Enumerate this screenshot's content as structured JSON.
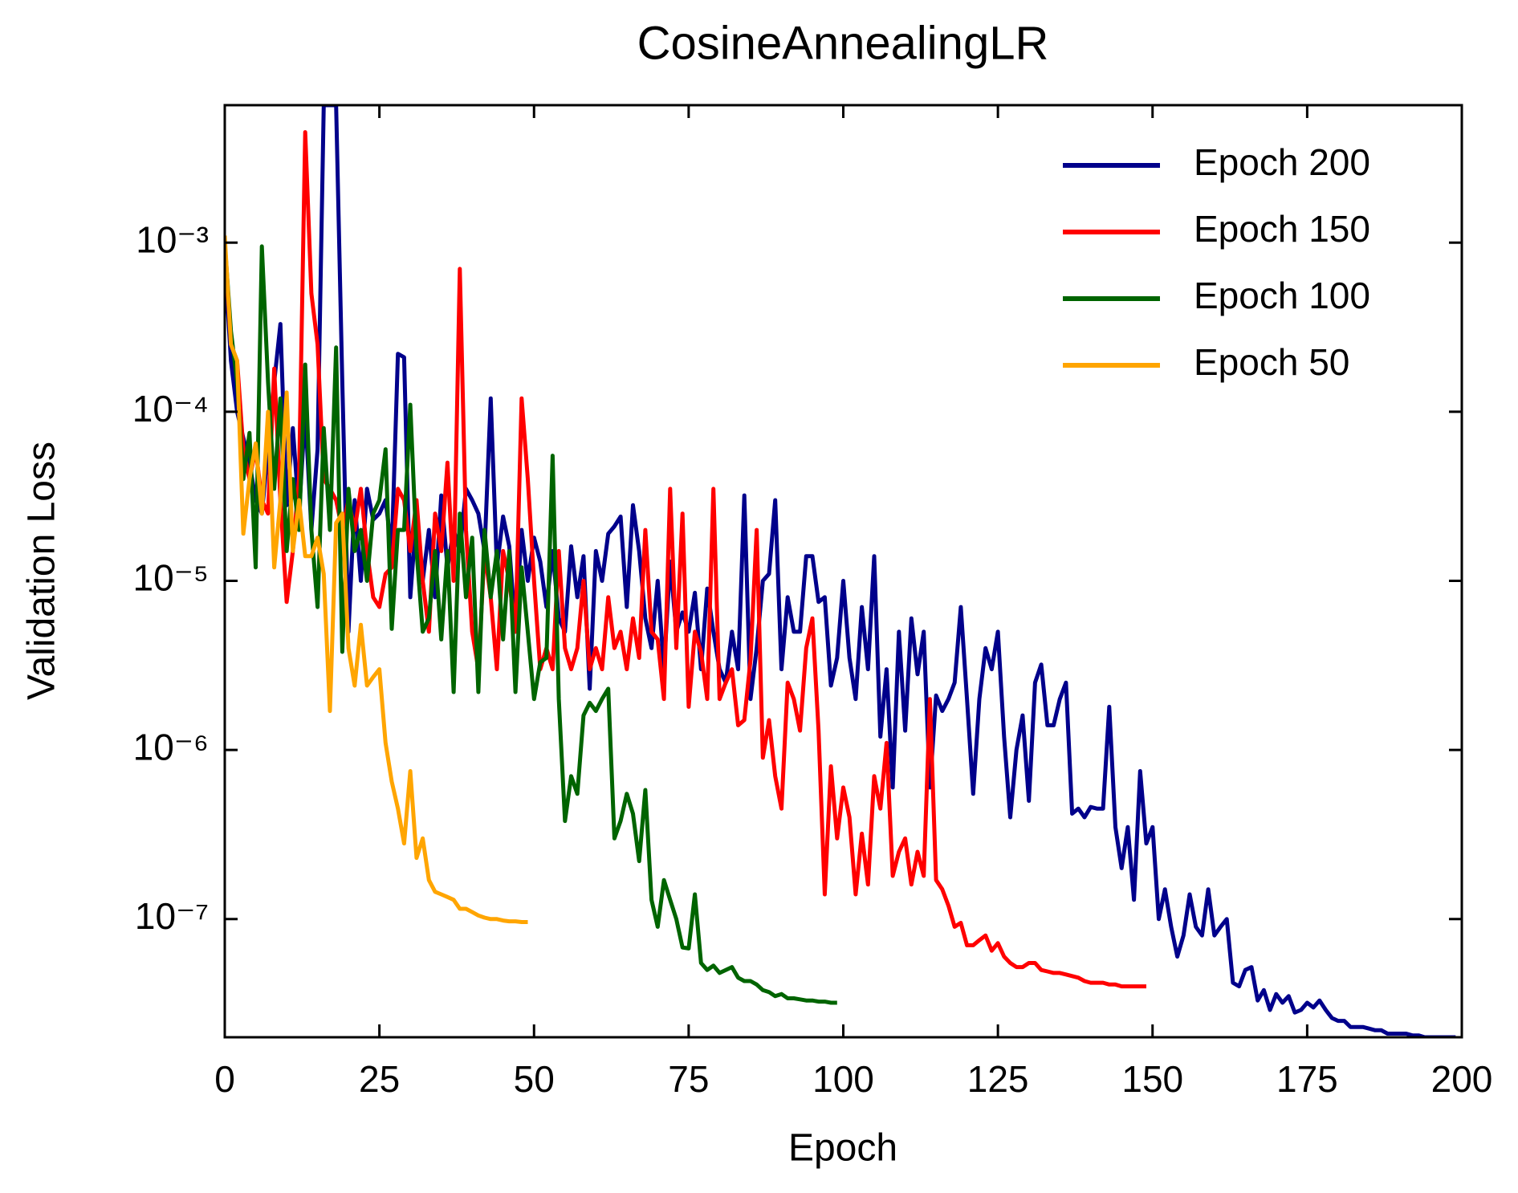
{
  "chart_data": {
    "type": "line",
    "title": "CosineAnnealingLR",
    "xlabel": "Epoch",
    "ylabel": "Validation Loss",
    "yscale": "log",
    "legend": "upper right",
    "xlim": [
      0,
      200
    ],
    "xticks": [
      0,
      25,
      50,
      75,
      100,
      125,
      150,
      175,
      200
    ],
    "ylim": [
      2e-08,
      0.0065
    ],
    "yticks": [
      {
        "value": 1e-07,
        "label": "10⁻⁷"
      },
      {
        "value": 1e-06,
        "label": "10⁻⁶"
      },
      {
        "value": 1e-05,
        "label": "10⁻⁵"
      },
      {
        "value": 0.0001,
        "label": "10⁻⁴"
      },
      {
        "value": 0.001,
        "label": "10⁻³"
      }
    ],
    "x": [
      0,
      1,
      2,
      3,
      4,
      5,
      6,
      7,
      8,
      9,
      10,
      11,
      12,
      13,
      14,
      15,
      16,
      17,
      18,
      19,
      20,
      21,
      22,
      23,
      24,
      25,
      26,
      27,
      28,
      29,
      30,
      31,
      32,
      33,
      34,
      35,
      36,
      37,
      38,
      39,
      40,
      41,
      42,
      43,
      44,
      45,
      46,
      47,
      48,
      49,
      50,
      51,
      52,
      53,
      54,
      55,
      56,
      57,
      58,
      59,
      60,
      61,
      62,
      63,
      64,
      65,
      66,
      67,
      68,
      69,
      70,
      71,
      72,
      73,
      74,
      75,
      76,
      77,
      78,
      79,
      80,
      81,
      82,
      83,
      84,
      85,
      86,
      87,
      88,
      89,
      90,
      91,
      92,
      93,
      94,
      95,
      96,
      97,
      98,
      99,
      100,
      101,
      102,
      103,
      104,
      105,
      106,
      107,
      108,
      109,
      110,
      111,
      112,
      113,
      114,
      115,
      116,
      117,
      118,
      119,
      120,
      121,
      122,
      123,
      124,
      125,
      126,
      127,
      128,
      129,
      130,
      131,
      132,
      133,
      134,
      135,
      136,
      137,
      138,
      139,
      140,
      141,
      142,
      143,
      144,
      145,
      146,
      147,
      148,
      149,
      150,
      151,
      152,
      153,
      154,
      155,
      156,
      157,
      158,
      159,
      160,
      161,
      162,
      163,
      164,
      165,
      166,
      167,
      168,
      169,
      170,
      171,
      172,
      173,
      174,
      175,
      176,
      177,
      178,
      179,
      180,
      181,
      182,
      183,
      184,
      185,
      186,
      187,
      188,
      189,
      190,
      191,
      192,
      193,
      194,
      195,
      196,
      197,
      198,
      199
    ],
    "series": [
      {
        "name": "Epoch 200",
        "color": "#00008b",
        "values": [
          0.0008,
          0.0002,
          0.0001,
          7e-05,
          5e-05,
          3e-05,
          2.5e-05,
          6e-05,
          0.00015,
          0.00033,
          2.8e-05,
          8e-05,
          2.5e-05,
          0.0001,
          2e-05,
          6e-05,
          0.0065,
          0.0065,
          0.0065,
          0.00015,
          5e-06,
          3e-05,
          1e-05,
          3.5e-05,
          2.3e-05,
          2.5e-05,
          3e-05,
          1.5e-05,
          0.00022,
          0.00021,
          8e-06,
          2.5e-05,
          1e-05,
          2e-05,
          8e-06,
          3.2e-05,
          1.2e-05,
          2e-05,
          1.5e-05,
          3.5e-05,
          3e-05,
          2.5e-05,
          1.5e-05,
          0.00012,
          1.2e-05,
          2.4e-05,
          1.6e-05,
          5e-06,
          2e-05,
          1e-05,
          1.8e-05,
          1.3e-05,
          7e-06,
          1.5e-05,
          6e-06,
          5e-06,
          1.6e-05,
          8e-06,
          1.4e-05,
          2.3e-06,
          1.5e-05,
          1e-05,
          1.9e-05,
          2.1e-05,
          2.4e-05,
          7e-06,
          2.8e-05,
          1.5e-05,
          6e-06,
          4e-06,
          1e-05,
          3e-06,
          1.3e-05,
          5e-06,
          6.5e-06,
          5e-06,
          8.5e-06,
          3e-06,
          9e-06,
          5e-06,
          3e-06,
          2.5e-06,
          5e-06,
          3e-06,
          3.2e-05,
          2e-06,
          4e-06,
          1e-05,
          1.1e-05,
          3e-05,
          3e-06,
          8e-06,
          5e-06,
          5e-06,
          1.4e-05,
          1.4e-05,
          7.5e-06,
          8e-06,
          2.4e-06,
          3.5e-06,
          1e-05,
          3.5e-06,
          2e-06,
          7e-06,
          3e-06,
          1.4e-05,
          1.2e-06,
          3e-06,
          6e-07,
          5e-06,
          1.3e-06,
          6e-06,
          2.8e-06,
          5e-06,
          6e-07,
          2.1e-06,
          1.7e-06,
          2e-06,
          2.5e-06,
          7e-06,
          2e-06,
          5.5e-07,
          2e-06,
          4e-06,
          3e-06,
          5e-06,
          1.2e-06,
          4e-07,
          1e-06,
          1.6e-06,
          5e-07,
          2.5e-06,
          3.2e-06,
          1.4e-06,
          1.4e-06,
          2e-06,
          2.5e-06,
          4.2e-07,
          4.5e-07,
          4e-07,
          4.6e-07,
          4.5e-07,
          4.5e-07,
          1.8e-06,
          3.5e-07,
          2e-07,
          3.5e-07,
          1.3e-07,
          7.5e-07,
          2.8e-07,
          3.5e-07,
          1e-07,
          1.5e-07,
          9e-08,
          6e-08,
          8e-08,
          1.4e-07,
          9e-08,
          8e-08,
          1.5e-07,
          8e-08,
          9e-08,
          1e-07,
          4.2e-08,
          4e-08,
          5e-08,
          5.2e-08,
          3.3e-08,
          3.8e-08,
          2.9e-08,
          3.6e-08,
          3.2e-08,
          3.5e-08,
          2.8e-08,
          2.9e-08,
          3.2e-08,
          3e-08,
          3.3e-08,
          2.9e-08,
          2.6e-08,
          2.5e-08,
          2.5e-08,
          2.3e-08,
          2.3e-08,
          2.3e-08,
          2.25e-08,
          2.2e-08,
          2.2e-08,
          2.1e-08,
          2.1e-08,
          2.1e-08,
          2.1e-08,
          2.05e-08,
          2.05e-08,
          2e-08,
          2e-08,
          2e-08,
          2e-08,
          2e-08,
          2e-08
        ]
      },
      {
        "name": "Epoch 150",
        "color": "#ff0000",
        "values": [
          0.001,
          0.00025,
          0.0002,
          6e-05,
          4e-05,
          6e-05,
          3e-05,
          2.5e-05,
          0.00018,
          3e-05,
          7.5e-06,
          1.5e-05,
          4e-05,
          0.0045,
          0.0005,
          0.00025,
          4e-05,
          3.5e-05,
          3e-05,
          2e-05,
          3e-05,
          2e-05,
          3.5e-05,
          1.5e-05,
          8e-06,
          7e-06,
          1.1e-05,
          1.2e-05,
          3.5e-05,
          3e-05,
          1.5e-05,
          3e-05,
          1e-05,
          5e-06,
          2.5e-05,
          1.5e-05,
          5e-05,
          1e-05,
          0.0007,
          2e-05,
          5e-06,
          3e-06,
          1.5e-05,
          8e-06,
          3e-06,
          1.5e-05,
          1e-05,
          5e-06,
          0.00012,
          4e-05,
          1e-05,
          3e-06,
          4e-06,
          3e-06,
          1.5e-05,
          4e-06,
          3e-06,
          4e-06,
          1e-05,
          3e-06,
          4e-06,
          3e-06,
          8e-06,
          4e-06,
          5e-06,
          3e-06,
          6e-06,
          3.5e-06,
          2e-05,
          5e-06,
          4.5e-06,
          2e-06,
          3.5e-05,
          4e-06,
          2.5e-05,
          1.8e-06,
          5e-06,
          3.8e-06,
          2e-06,
          3.5e-05,
          2e-06,
          2.5e-06,
          3e-06,
          1.4e-06,
          1.5e-06,
          3.4e-06,
          2e-05,
          9e-07,
          1.5e-06,
          7e-07,
          4.5e-07,
          2.5e-06,
          2e-06,
          1.3e-06,
          4e-06,
          6e-06,
          1.3e-06,
          1.4e-07,
          8e-07,
          3e-07,
          6e-07,
          4e-07,
          1.4e-07,
          3.2e-07,
          1.6e-07,
          7e-07,
          4.5e-07,
          1.1e-06,
          1.8e-07,
          2.5e-07,
          3e-07,
          1.6e-07,
          2.5e-07,
          1.8e-07,
          2e-06,
          1.7e-07,
          1.5e-07,
          1.2e-07,
          9e-08,
          9.5e-08,
          7e-08,
          7e-08,
          7.5e-08,
          8e-08,
          6.5e-08,
          7.2e-08,
          6e-08,
          5.5e-08,
          5.2e-08,
          5.2e-08,
          5.5e-08,
          5.5e-08,
          5e-08,
          4.9e-08,
          4.8e-08,
          4.8e-08,
          4.7e-08,
          4.6e-08,
          4.5e-08,
          4.3e-08,
          4.2e-08,
          4.2e-08,
          4.2e-08,
          4.1e-08,
          4.1e-08,
          4e-08,
          4e-08,
          4e-08,
          4e-08,
          4e-08,
          null,
          null,
          null,
          null,
          null,
          null,
          null,
          null,
          null,
          null,
          null,
          null,
          null,
          null,
          null,
          null,
          null,
          null,
          null,
          null,
          null,
          null,
          null,
          null,
          null,
          null,
          null,
          null,
          null,
          null,
          null,
          null,
          null,
          null,
          null,
          null,
          null,
          null,
          null,
          null,
          null,
          null,
          null,
          null,
          null,
          null,
          null,
          null,
          null,
          null
        ]
      },
      {
        "name": "Epoch 100",
        "color": "#006400",
        "values": [
          0.001,
          0.0003,
          0.00015,
          4e-05,
          7.5e-05,
          1.2e-05,
          0.00095,
          0.00015,
          3.5e-05,
          0.00012,
          1.5e-05,
          4e-05,
          2e-05,
          0.00019,
          2e-05,
          7e-06,
          8e-05,
          2e-05,
          0.00024,
          3.8e-06,
          3.5e-05,
          1.5e-05,
          2e-05,
          1e-05,
          2.5e-05,
          3e-05,
          6e-05,
          5.2e-06,
          2e-05,
          2e-05,
          0.00011,
          1.5e-05,
          5e-06,
          6e-06,
          1.5e-05,
          4.5e-06,
          1.5e-05,
          2.2e-06,
          2.5e-05,
          8e-06,
          1.8e-05,
          2.2e-06,
          2e-05,
          8e-06,
          1.5e-05,
          4.5e-06,
          1.5e-05,
          2.2e-06,
          1.2e-05,
          5e-06,
          2e-06,
          3.3e-06,
          3.5e-06,
          5.5e-05,
          2e-06,
          3.8e-07,
          7e-07,
          5.5e-07,
          1.6e-06,
          1.9e-06,
          1.7e-06,
          2e-06,
          2.3e-06,
          3e-07,
          3.8e-07,
          5.5e-07,
          4.2e-07,
          2.2e-07,
          5.8e-07,
          1.3e-07,
          9e-08,
          1.7e-07,
          1.3e-07,
          1e-07,
          6.8e-08,
          6.7e-08,
          1.4e-07,
          5.5e-08,
          5e-08,
          5.3e-08,
          4.8e-08,
          5e-08,
          5.2e-08,
          4.5e-08,
          4.3e-08,
          4.3e-08,
          4.1e-08,
          3.8e-08,
          3.7e-08,
          3.5e-08,
          3.6e-08,
          3.4e-08,
          3.4e-08,
          3.35e-08,
          3.3e-08,
          3.3e-08,
          3.25e-08,
          3.25e-08,
          3.2e-08,
          3.2e-08,
          null,
          null,
          null,
          null,
          null,
          null,
          null,
          null,
          null,
          null,
          null,
          null,
          null,
          null,
          null,
          null,
          null,
          null,
          null,
          null,
          null,
          null,
          null,
          null,
          null,
          null,
          null,
          null,
          null,
          null,
          null,
          null,
          null,
          null,
          null,
          null,
          null,
          null,
          null,
          null,
          null,
          null,
          null,
          null,
          null,
          null,
          null,
          null,
          null,
          null,
          null,
          null,
          null,
          null,
          null,
          null,
          null,
          null,
          null,
          null,
          null,
          null,
          null,
          null,
          null,
          null,
          null,
          null,
          null,
          null,
          null,
          null,
          null,
          null,
          null,
          null,
          null,
          null,
          null,
          null,
          null,
          null,
          null,
          null,
          null,
          null,
          null,
          null,
          null,
          null,
          null,
          null,
          null,
          null,
          null,
          null,
          null,
          null,
          null,
          null
        ]
      },
      {
        "name": "Epoch 50",
        "color": "#ffa500",
        "values": [
          0.0011,
          0.00025,
          0.0002,
          1.9e-05,
          4e-05,
          6.5e-05,
          2.5e-05,
          0.0001,
          1.2e-05,
          3e-05,
          0.00013,
          1.5e-05,
          3e-05,
          1.4e-05,
          1.4e-05,
          1.8e-05,
          1.1e-05,
          1.7e-06,
          2.2e-05,
          2.5e-05,
          4e-06,
          2.4e-06,
          5.5e-06,
          2.4e-06,
          2.7e-06,
          3e-06,
          1.1e-06,
          6.5e-07,
          4.5e-07,
          2.8e-07,
          7.5e-07,
          2.3e-07,
          3e-07,
          1.7e-07,
          1.45e-07,
          1.4e-07,
          1.35e-07,
          1.3e-07,
          1.15e-07,
          1.15e-07,
          1.1e-07,
          1.05e-07,
          1.02e-07,
          1e-07,
          1e-07,
          9.8e-08,
          9.7e-08,
          9.7e-08,
          9.6e-08,
          9.6e-08,
          null,
          null,
          null,
          null,
          null,
          null,
          null,
          null,
          null,
          null,
          null,
          null,
          null,
          null,
          null,
          null,
          null,
          null,
          null,
          null,
          null,
          null,
          null,
          null,
          null,
          null,
          null,
          null,
          null,
          null,
          null,
          null,
          null,
          null,
          null,
          null,
          null,
          null,
          null,
          null,
          null,
          null,
          null,
          null,
          null,
          null,
          null,
          null,
          null,
          null,
          null,
          null,
          null,
          null,
          null,
          null,
          null,
          null,
          null,
          null,
          null,
          null,
          null,
          null,
          null,
          null,
          null,
          null,
          null,
          null,
          null,
          null,
          null,
          null,
          null,
          null,
          null,
          null,
          null,
          null,
          null,
          null,
          null,
          null,
          null,
          null,
          null,
          null,
          null,
          null,
          null,
          null,
          null,
          null,
          null,
          null,
          null,
          null,
          null,
          null,
          null,
          null,
          null,
          null,
          null,
          null,
          null,
          null,
          null,
          null,
          null,
          null,
          null,
          null,
          null,
          null,
          null,
          null,
          null,
          null,
          null,
          null,
          null,
          null,
          null,
          null,
          null,
          null,
          null,
          null,
          null,
          null,
          null,
          null,
          null,
          null,
          null,
          null,
          null,
          null,
          null,
          null,
          null,
          null,
          null,
          null,
          null,
          null,
          null,
          null
        ]
      }
    ]
  }
}
